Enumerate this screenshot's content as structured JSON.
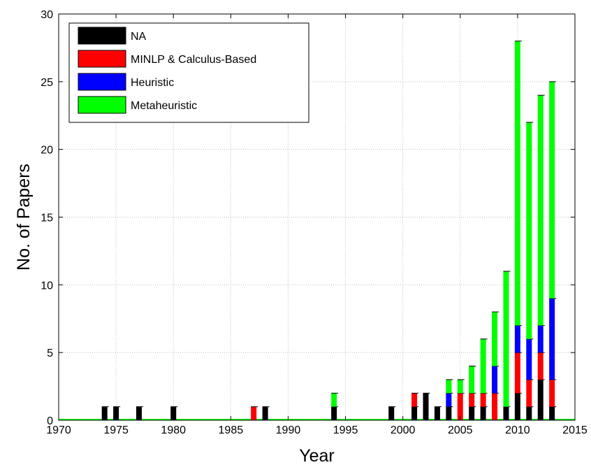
{
  "chart_data": {
    "type": "bar",
    "stacked": true,
    "xlabel": "Year",
    "ylabel": "No. of Papers",
    "xlim": [
      1970,
      2015
    ],
    "ylim": [
      0,
      30
    ],
    "xticks": [
      1970,
      1975,
      1980,
      1985,
      1990,
      1995,
      2000,
      2005,
      2010,
      2015
    ],
    "yticks": [
      0,
      5,
      10,
      15,
      20,
      25,
      30
    ],
    "grid": true,
    "legend_position": "top-left",
    "x": [
      1974,
      1975,
      1977,
      1980,
      1987,
      1988,
      1994,
      1999,
      2001,
      2002,
      2003,
      2004,
      2005,
      2006,
      2007,
      2008,
      2009,
      2010,
      2011,
      2012,
      2013
    ],
    "series": [
      {
        "name": "NA",
        "color": "#000000",
        "values": [
          1,
          1,
          1,
          1,
          0,
          1,
          1,
          1,
          1,
          2,
          1,
          1,
          0,
          1,
          1,
          0,
          1,
          2,
          1,
          3,
          1
        ]
      },
      {
        "name": "MINLP & Calculus-Based",
        "color": "#ff0000",
        "values": [
          0,
          0,
          0,
          0,
          1,
          0,
          0,
          0,
          1,
          0,
          0,
          0,
          2,
          1,
          1,
          2,
          0,
          3,
          2,
          2,
          2
        ]
      },
      {
        "name": "Heuristic",
        "color": "#0000ff",
        "values": [
          0,
          0,
          0,
          0,
          0,
          0,
          0,
          0,
          0,
          0,
          0,
          1,
          0,
          0,
          0,
          2,
          0,
          2,
          3,
          2,
          6
        ]
      },
      {
        "name": "Metaheuristic",
        "color": "#00ff00",
        "values": [
          0,
          0,
          0,
          0,
          0,
          0,
          1,
          0,
          0,
          0,
          0,
          1,
          1,
          2,
          4,
          4,
          10,
          21,
          16,
          17,
          16
        ]
      }
    ]
  }
}
